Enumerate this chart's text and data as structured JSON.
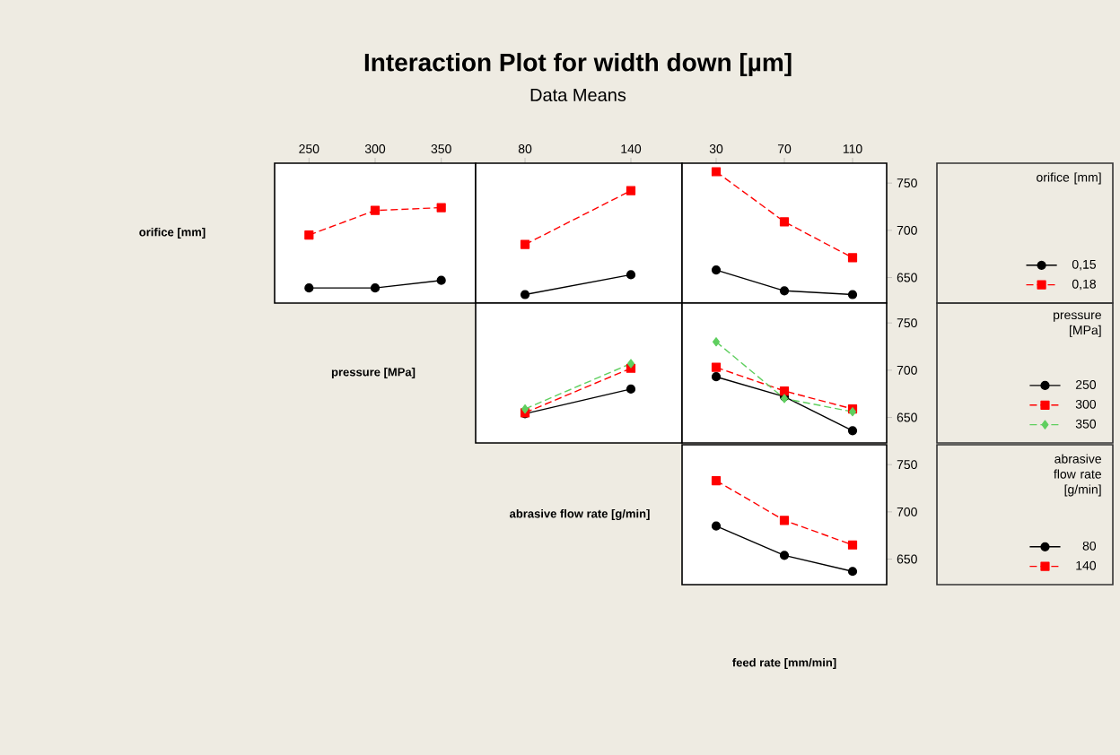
{
  "chart_data": [
    {
      "type": "other",
      "title": "Interaction Plot for width down [µm]",
      "subtitle": "Data Means"
    },
    {
      "type": "line",
      "ylabel": "orifice [mm]",
      "x": [
        250,
        300,
        350
      ],
      "xlim": [
        224,
        376
      ],
      "xticks": [
        250,
        300,
        350
      ],
      "ylim": [
        623,
        771
      ],
      "yticks": [
        650,
        700,
        750
      ],
      "tick_labels": "x",
      "series": [
        {
          "color": "#000000",
          "marker": "circle",
          "line_style": "solid",
          "values": [
            639,
            639,
            647
          ]
        },
        {
          "color": "#ff0000",
          "marker": "square",
          "line_style": "dashed",
          "values": [
            695,
            721,
            724
          ]
        }
      ]
    },
    {
      "type": "line",
      "x": [
        80,
        140
      ],
      "xlim": [
        52,
        169
      ],
      "xticks": [
        80,
        140
      ],
      "ylim": [
        623,
        771
      ],
      "yticks": [
        650,
        700,
        750
      ],
      "tick_labels": "x",
      "series": [
        {
          "color": "#000000",
          "marker": "circle",
          "line_style": "solid",
          "values": [
            632,
            653
          ]
        },
        {
          "color": "#ff0000",
          "marker": "square",
          "line_style": "dashed",
          "values": [
            685,
            742
          ]
        }
      ]
    },
    {
      "type": "line",
      "x": [
        30,
        70,
        110
      ],
      "xlim": [
        10,
        130
      ],
      "xticks": [
        30,
        70,
        110
      ],
      "ylim": [
        623,
        771
      ],
      "yticks": [
        650,
        700,
        750
      ],
      "legend": "right",
      "legend_title": "orifice [mm]",
      "series": [
        {
          "name": "0,15",
          "color": "#000000",
          "marker": "circle",
          "line_style": "solid",
          "values": [
            658,
            636,
            632
          ]
        },
        {
          "name": "0,18",
          "color": "#ff0000",
          "marker": "square",
          "line_style": "dashed",
          "values": [
            762,
            709,
            671
          ]
        }
      ]
    },
    {
      "type": "line",
      "ylabel": "pressure [MPa]",
      "x": [
        80,
        140
      ],
      "xlim": [
        52,
        169
      ],
      "xticks": [
        80,
        140
      ],
      "ylim": [
        623,
        771
      ],
      "yticks": [
        650,
        700,
        750
      ],
      "tick_labels": false,
      "series": [
        {
          "color": "#000000",
          "marker": "circle",
          "line_style": "solid",
          "values": [
            654,
            680
          ]
        },
        {
          "color": "#ff0000",
          "marker": "square",
          "line_style": "dashed",
          "values": [
            655,
            702
          ]
        },
        {
          "color": "#5fcf5f",
          "marker": "diamond",
          "line_style": "dashed",
          "values": [
            659,
            707
          ]
        }
      ]
    },
    {
      "type": "line",
      "x": [
        30,
        70,
        110
      ],
      "xlim": [
        10,
        130
      ],
      "xticks": [
        30,
        70,
        110
      ],
      "ylim": [
        623,
        771
      ],
      "yticks": [
        650,
        700,
        750
      ],
      "tick_labels": "y",
      "legend": "right",
      "legend_title": "pressure [MPa]",
      "series": [
        {
          "name": "250",
          "color": "#000000",
          "marker": "circle",
          "line_style": "solid",
          "values": [
            693,
            672,
            636
          ]
        },
        {
          "name": "300",
          "color": "#ff0000",
          "marker": "square",
          "line_style": "dashed",
          "values": [
            703,
            678,
            659
          ]
        },
        {
          "name": "350",
          "color": "#5fcf5f",
          "marker": "diamond",
          "line_style": "dashed",
          "values": [
            730,
            670,
            656
          ]
        }
      ]
    },
    {
      "type": "line",
      "ylabel": "abrasive flow rate [g/min]",
      "xlabel": "feed rate [mm/min]",
      "x": [
        30,
        70,
        110
      ],
      "xlim": [
        10,
        130
      ],
      "xticks": [
        30,
        70,
        110
      ],
      "ylim": [
        623,
        771
      ],
      "yticks": [
        650,
        700,
        750
      ],
      "tick_labels": "y",
      "legend": "right",
      "legend_title": "abrasive flow rate [g/min]",
      "series": [
        {
          "name": "80",
          "color": "#000000",
          "marker": "circle",
          "line_style": "solid",
          "values": [
            685,
            654,
            637
          ]
        },
        {
          "name": "140",
          "color": "#ff0000",
          "marker": "square",
          "line_style": "dashed",
          "values": [
            733,
            691,
            665
          ]
        }
      ]
    }
  ]
}
